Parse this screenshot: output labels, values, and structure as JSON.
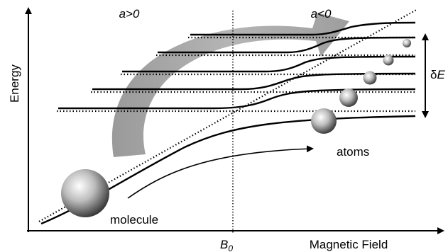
{
  "labels": {
    "y_axis": "Energy",
    "x_axis": "Magnetic Field",
    "region_left": "a>0",
    "region_right": "a<0",
    "resonance_field": "B",
    "resonance_sub": "0",
    "energy_gap_delta": "δ",
    "energy_gap_E": "E",
    "atoms": "atoms",
    "molecule": "molecule"
  },
  "colors": {
    "ink": "#000000",
    "arrow_fill": "#a8a8a8",
    "sphere_highlight": "#ffffff",
    "sphere_shadow": "#333333"
  }
}
